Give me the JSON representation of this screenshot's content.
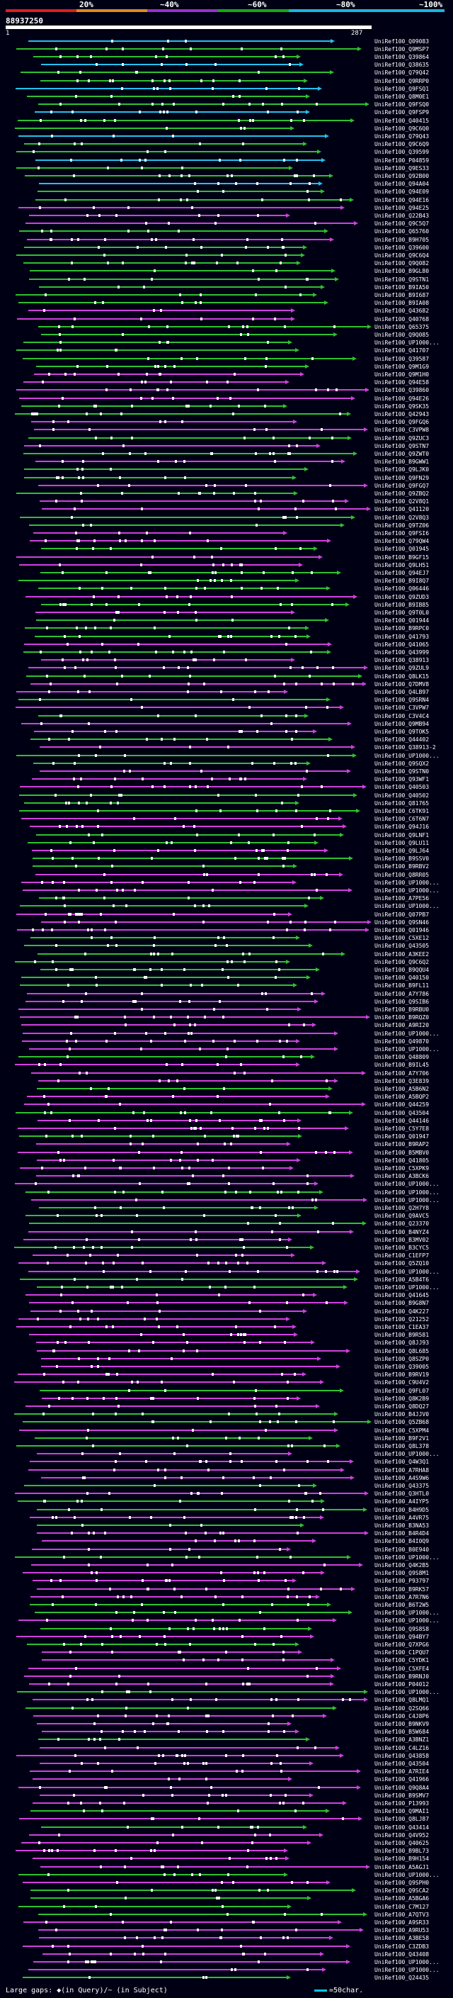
{
  "scale": {
    "labels": [
      "20%",
      "~40%",
      "~60%",
      "~80%",
      "~100%"
    ],
    "colors": [
      "#e01c1c",
      "#e08a1c",
      "#9a2fd0",
      "#15a815",
      "#18b6e6"
    ]
  },
  "query": {
    "id": "88937250",
    "start": "1",
    "end": "287"
  },
  "hit_colors": {
    "cyan": "#24c0f0",
    "green": "#2ec12e",
    "magenta": "#d040e0",
    "white": "#ffffff"
  },
  "hits": [
    "UniRef100_Q09083",
    "UniRef100_Q9MSP7",
    "UniRef100_Q39864",
    "UniRef100_Q38635",
    "UniRef100_Q79Q42",
    "UniRef100_Q9RRP0",
    "UniRef100_Q9FSQ1",
    "UniRef100_Q8M0E1",
    "UniRef100_Q9FSQ0",
    "UniRef100_Q9FSP9",
    "UniRef100_Q40415",
    "UniRef100_Q9C6Q0",
    "UniRef100_Q79Q43",
    "UniRef100_Q9C6Q9",
    "UniRef100_Q39599",
    "UniRef100_P04859",
    "UniRef100_Q9ES33",
    "UniRef100_Q92B00",
    "UniRef100_Q94A04",
    "UniRef100_Q94E09",
    "UniRef100_Q94E16",
    "UniRef100_Q94E25",
    "UniRef100_Q22B43",
    "UniRef100_Q9C5Q7",
    "UniRef100_Q65760",
    "UniRef100_B9H705",
    "UniRef100_Q39600",
    "UniRef100_Q9C6Q4",
    "UniRef100_Q9Q082",
    "UniRef100_B9GL80",
    "UniRef100_Q9STN1",
    "UniRef100_B9IA50",
    "UniRef100_B9I687",
    "UniRef100_B9IA08",
    "UniRef100_Q43682",
    "UniRef100_Q40768",
    "UniRef100_Q65375",
    "UniRef100_Q9Q085",
    "UniRef100_UP1000...",
    "UniRef100_Q41707",
    "UniRef100_Q39587",
    "UniRef100_Q9M1G9",
    "UniRef100_Q9M1H0",
    "UniRef100_Q94E58",
    "UniRef100_Q39860",
    "UniRef100_Q94E26",
    "UniRef100_Q9SK35",
    "UniRef100_Q42943",
    "UniRef100_Q9FGQ6",
    "UniRef100_C3VPW8",
    "UniRef100_Q9ZUC3",
    "UniRef100_Q9STN7",
    "UniRef100_Q9ZWT0",
    "UniRef100_B9GWW1",
    "UniRef100_Q9LJK0",
    "UniRef100_Q9FN29",
    "UniRef100_Q9FGQ7",
    "UniRef100_Q9ZBQ2",
    "UniRef100_Q2V8Q1",
    "UniRef100_Q41120",
    "UniRef100_Q2V8Q3",
    "UniRef100_Q9TZ06",
    "UniRef100_Q9FSI6",
    "UniRef100_Q79QW4",
    "UniRef100_Q01945",
    "UniRef100_B9GF15",
    "UniRef100_Q9LH51",
    "UniRef100_Q94EJ7",
    "UniRef100_B9I8Q7",
    "UniRef100_Q06446",
    "UniRef100_Q9ZUD3",
    "UniRef100_B9IB85",
    "UniRef100_Q9T0L0",
    "UniRef100_Q01944",
    "UniRef100_B9RPC0",
    "UniRef100_Q41793",
    "UniRef100_Q41065",
    "UniRef100_Q43999",
    "UniRef100_Q38913",
    "UniRef100_Q9ZUL9",
    "UniRef100_Q8LK15",
    "UniRef100_Q7DMV8",
    "UniRef100_Q4LB97",
    "UniRef100_Q9SRN4",
    "UniRef100_C3VPW7",
    "UniRef100_C3V4C4",
    "UniRef100_Q9MB94",
    "UniRef100_Q9TOK5",
    "UniRef100_Q44402",
    "UniRef100_Q38913-2",
    "UniRef100_UP1000...",
    "UniRef100_Q9SQX2",
    "UniRef100_Q9STN0",
    "UniRef100_Q93WF1",
    "UniRef100_Q40503",
    "UniRef100_Q40502",
    "UniRef100_Q81765",
    "UniRef100_C6TK91",
    "UniRef100_C6T6N7",
    "UniRef100_Q94J16",
    "UniRef100_Q9LNF1",
    "UniRef100_Q9LU11",
    "UniRef100_Q9LJ64",
    "UniRef100_B9SSV0",
    "UniRef100_B9RBV2",
    "UniRef100_Q8RR05",
    "UniRef100_UP1000...",
    "UniRef100_UP1000...",
    "UniRef100_A7PE56",
    "UniRef100_UP1000...",
    "UniRef100_Q07PB7",
    "UniRef100_Q9SN46",
    "UniRef100_Q01946",
    "UniRef100_C5XE12",
    "UniRef100_Q43505",
    "UniRef100_A3KEE2",
    "UniRef100_Q9C6Q2",
    "UniRef100_B9QQU4",
    "UniRef100_Q40150",
    "UniRef100_B9FL11",
    "UniRef100_A7Y786",
    "UniRef100_Q9SIB6",
    "UniRef100_B9RBU0",
    "UniRef100_B9RQZ0",
    "UniRef100_A9RI20",
    "UniRef100_UP1000...",
    "UniRef100_Q49870",
    "UniRef100_UP1000...",
    "UniRef100_Q48809",
    "UniRef100_B9IL45",
    "UniRef100_A7Y706",
    "UniRef100_Q3E839",
    "UniRef100_A5B6N2",
    "UniRef100_A5BQP2",
    "UniRef100_Q44259",
    "UniRef100_Q43504",
    "UniRef100_Q44146",
    "UniRef100_C5Y7E8",
    "UniRef100_Q01947",
    "UniRef100_B9RAP2",
    "UniRef100_B5MBV0",
    "UniRef100_Q41805",
    "UniRef100_C5XPK9",
    "UniRef100_A3BCK6",
    "UniRef100_UP1000...",
    "UniRef100_UP1000...",
    "UniRef100_UP1000...",
    "UniRef100_Q2H7Y8",
    "UniRef100_Q9AVC5",
    "UniRef100_Q23370",
    "UniRef100_B4NYZ4",
    "UniRef100_B3MV02",
    "UniRef100_B3CYC5",
    "UniRef100_C1EFP7",
    "UniRef100_Q5ZQ10",
    "UniRef100_UP1000...",
    "UniRef100_A5B4T6",
    "UniRef100_UP1000...",
    "UniRef100_Q41645",
    "UniRef100_B9G8N7",
    "UniRef100_Q4K227",
    "UniRef100_Q21252",
    "UniRef100_C1EA37",
    "UniRef100_B9R581",
    "UniRef100_Q8JJ93",
    "UniRef100_Q8L685",
    "UniRef100_Q8SZP0",
    "UniRef100_Q39005",
    "UniRef100_B9RV19",
    "UniRef100_C9U4V2",
    "UniRef100_Q9FL07",
    "UniRef100_Q8K2B9",
    "UniRef100_Q8DQ27",
    "UniRef100_B4JJV0",
    "UniRef100_Q5ZB68",
    "UniRef100_C5XPM4",
    "UniRef100_B9F2V1",
    "UniRef100_Q8L378",
    "UniRef100_UP1000...",
    "UniRef100_Q4W3Q1",
    "UniRef100_A7RHA8",
    "UniRef100_A4S9W6",
    "UniRef100_Q43375",
    "UniRef100_Q3HTL0",
    "UniRef100_A4IYP5",
    "UniRef100_B4H9D5",
    "UniRef100_A4VR75",
    "UniRef100_B3NA53",
    "UniRef100_B4R4D4",
    "UniRef100_B4I0Q9",
    "UniRef100_B0E940",
    "UniRef100_UP1000...",
    "UniRef100_Q4K2B5",
    "UniRef100_Q9S8M1",
    "UniRef100_P93797",
    "UniRef100_B9RK57",
    "UniRef100_A7R7N6",
    "UniRef100_B6T2W5",
    "UniRef100_UP1000...",
    "UniRef100_UP1000...",
    "UniRef100_Q9S8S8",
    "UniRef100_Q94BY7",
    "UniRef100_Q7XPG6",
    "UniRef100_C1PQU7",
    "UniRef100_C5YDK1",
    "UniRef100_C5XFE4",
    "UniRef100_B9RNJ0",
    "UniRef100_P04012",
    "UniRef100_UP1000...",
    "UniRef100_Q8LMQ1",
    "UniRef100_Q2SQ66",
    "UniRef100_C4J8P6",
    "UniRef100_B9NKV9",
    "UniRef100_B5W684",
    "UniRef100_A3BNZ1",
    "UniRef100_C4LZ16",
    "UniRef100_Q43858",
    "UniRef100_Q43504",
    "UniRef100_A7RIE4",
    "UniRef100_Q41966",
    "UniRef100_Q9Q8A4",
    "UniRef100_B9SMV7",
    "UniRef100_P13993",
    "UniRef100_Q9MAI1",
    "UniRef100_Q8LJ87",
    "UniRef100_Q43414",
    "UniRef100_Q4V952",
    "UniRef100_Q40625",
    "UniRef100_B9BL73",
    "UniRef100_B9H154",
    "UniRef100_A5AGJ1",
    "UniRef100_UP1000...",
    "UniRef100_Q9SPH0",
    "UniRef100_Q9SCA2",
    "UniRef100_A5BGA6",
    "UniRef100_C7M127",
    "UniRef100_A7QTV3",
    "UniRef100_A9SR33",
    "UniRef100_A9RU53",
    "UniRef100_A3BE58",
    "UniRef100_C3ZDB3",
    "UniRef100_Q43408",
    "UniRef100_UP1000...",
    "UniRef100_UP1000...",
    "UniRef100_Q24435"
  ],
  "footer": {
    "gaps_text": "Large gaps: ◆(in Query)/~ (in Subject)",
    "legend_text": "=50char."
  }
}
